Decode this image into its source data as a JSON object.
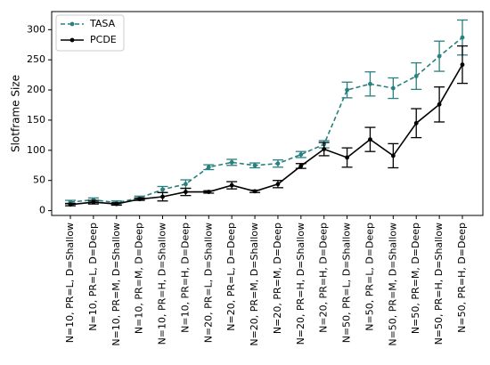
{
  "chart_data": {
    "type": "line",
    "title": "",
    "xlabel": "",
    "ylabel": "Slotframe Size",
    "ylim": [
      -8,
      330
    ],
    "yticks": [
      0,
      50,
      100,
      150,
      200,
      250,
      300
    ],
    "grid": false,
    "legend": "top-left",
    "categories": [
      "N=10, PR=L, D=Shallow",
      "N=10, PR=L, D=Deep",
      "N=10, PR=M, D=Shallow",
      "N=10, PR=M, D=Deep",
      "N=10, PR=H, D=Shallow",
      "N=10, PR=H, D=Deep",
      "N=20, PR=L, D=Shallow",
      "N=20, PR=L, D=Deep",
      "N=20, PR=M, D=Shallow",
      "N=20, PR=M, D=Deep",
      "N=20, PR=H, D=Shallow",
      "N=20, PR=H, D=Deep",
      "N=50, PR=L, D=Shallow",
      "N=50, PR=L, D=Deep",
      "N=50, PR=M, D=Shallow",
      "N=50, PR=M, D=Deep",
      "N=50, PR=H, D=Shallow",
      "N=50, PR=H, D=Deep"
    ],
    "series": [
      {
        "name": "TASA",
        "color": "#2a7f7f",
        "style": "dashed",
        "values": [
          14,
          18,
          13,
          21,
          35,
          44,
          72,
          80,
          75,
          78,
          93,
          110,
          200,
          210,
          203,
          223,
          256,
          287
        ],
        "errors": [
          3,
          3,
          3,
          3,
          5,
          7,
          4,
          5,
          4,
          6,
          5,
          6,
          13,
          20,
          17,
          22,
          25,
          29
        ]
      },
      {
        "name": "PCDE",
        "color": "#000000",
        "style": "solid",
        "values": [
          10,
          14,
          11,
          19,
          23,
          31,
          31,
          42,
          32,
          44,
          74,
          102,
          88,
          118,
          91,
          145,
          176,
          242
        ],
        "errors": [
          2,
          3,
          2,
          2,
          7,
          6,
          2,
          6,
          2,
          6,
          4,
          11,
          16,
          20,
          20,
          24,
          29,
          31
        ]
      }
    ]
  }
}
